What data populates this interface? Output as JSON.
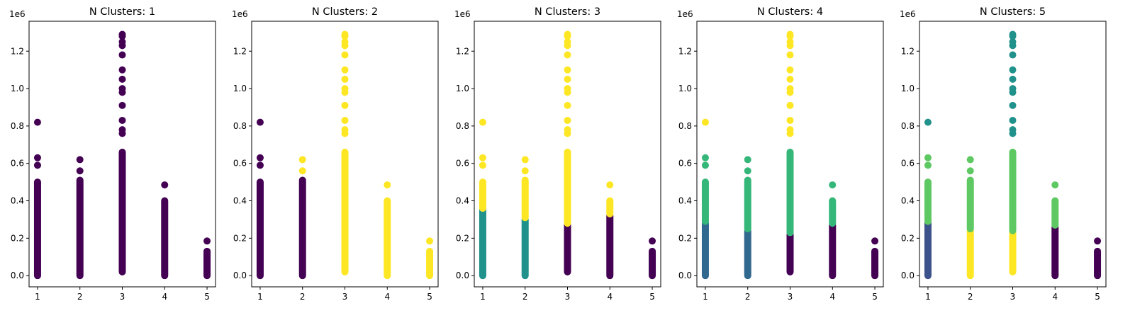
{
  "figure": {
    "title_prefix": "N Clusters: ",
    "offset_label": "1e6"
  },
  "colors": {
    "viridis_purple": "#440154",
    "viridis_blue": "#3b528b",
    "viridis_darkteal": "#31688e",
    "viridis_teal": "#21918c",
    "viridis_green": "#35b779",
    "viridis_lightgreen": "#5ec962",
    "viridis_yellow": "#fde725"
  },
  "chart_data": [
    {
      "type": "scatter",
      "title": "N Clusters: 1",
      "xlabel": "",
      "ylabel": "",
      "xticks": [
        "1",
        "2",
        "3",
        "4",
        "5"
      ],
      "yticks": [
        "0.0",
        "0.2",
        "0.4",
        "0.6",
        "0.8",
        "1.0",
        "1.2"
      ],
      "y_scale_label": "1e6",
      "xlim": [
        0.8,
        5.2
      ],
      "ylim": [
        -60000,
        1360000
      ],
      "grid": false,
      "columns": [
        {
          "x": 1,
          "segments": [
            {
              "min": 0,
              "max": 500000,
              "color": "#440154"
            }
          ],
          "points": [
            {
              "y": 590000,
              "color": "#440154"
            },
            {
              "y": 630000,
              "color": "#440154"
            },
            {
              "y": 820000,
              "color": "#440154"
            }
          ]
        },
        {
          "x": 2,
          "segments": [
            {
              "min": 0,
              "max": 510000,
              "color": "#440154"
            }
          ],
          "points": [
            {
              "y": 560000,
              "color": "#440154"
            },
            {
              "y": 620000,
              "color": "#440154"
            }
          ]
        },
        {
          "x": 3,
          "segments": [
            {
              "min": 20000,
              "max": 660000,
              "color": "#440154"
            }
          ],
          "points": [
            {
              "y": 760000,
              "color": "#440154"
            },
            {
              "y": 780000,
              "color": "#440154"
            },
            {
              "y": 830000,
              "color": "#440154"
            },
            {
              "y": 910000,
              "color": "#440154"
            },
            {
              "y": 980000,
              "color": "#440154"
            },
            {
              "y": 1000000,
              "color": "#440154"
            },
            {
              "y": 1050000,
              "color": "#440154"
            },
            {
              "y": 1100000,
              "color": "#440154"
            },
            {
              "y": 1180000,
              "color": "#440154"
            },
            {
              "y": 1230000,
              "color": "#440154"
            },
            {
              "y": 1250000,
              "color": "#440154"
            },
            {
              "y": 1280000,
              "color": "#440154"
            },
            {
              "y": 1290000,
              "color": "#440154"
            }
          ]
        },
        {
          "x": 4,
          "segments": [
            {
              "min": 0,
              "max": 400000,
              "color": "#440154"
            }
          ],
          "points": [
            {
              "y": 485000,
              "color": "#440154"
            }
          ]
        },
        {
          "x": 5,
          "segments": [
            {
              "min": 0,
              "max": 130000,
              "color": "#440154"
            }
          ],
          "points": [
            {
              "y": 185000,
              "color": "#440154"
            }
          ]
        }
      ]
    },
    {
      "type": "scatter",
      "title": "N Clusters: 2",
      "xlabel": "",
      "ylabel": "",
      "xticks": [
        "1",
        "2",
        "3",
        "4",
        "5"
      ],
      "yticks": [
        "0.0",
        "0.2",
        "0.4",
        "0.6",
        "0.8",
        "1.0",
        "1.2"
      ],
      "y_scale_label": "1e6",
      "xlim": [
        0.8,
        5.2
      ],
      "ylim": [
        -60000,
        1360000
      ],
      "grid": false,
      "columns": [
        {
          "x": 1,
          "segments": [
            {
              "min": 0,
              "max": 500000,
              "color": "#440154"
            }
          ],
          "points": [
            {
              "y": 590000,
              "color": "#440154"
            },
            {
              "y": 630000,
              "color": "#440154"
            },
            {
              "y": 820000,
              "color": "#440154"
            }
          ]
        },
        {
          "x": 2,
          "segments": [
            {
              "min": 0,
              "max": 510000,
              "color": "#440154"
            }
          ],
          "points": [
            {
              "y": 560000,
              "color": "#fde725"
            },
            {
              "y": 620000,
              "color": "#fde725"
            }
          ]
        },
        {
          "x": 3,
          "segments": [
            {
              "min": 20000,
              "max": 660000,
              "color": "#fde725"
            }
          ],
          "points": [
            {
              "y": 760000,
              "color": "#fde725"
            },
            {
              "y": 780000,
              "color": "#fde725"
            },
            {
              "y": 830000,
              "color": "#fde725"
            },
            {
              "y": 910000,
              "color": "#fde725"
            },
            {
              "y": 980000,
              "color": "#fde725"
            },
            {
              "y": 1000000,
              "color": "#fde725"
            },
            {
              "y": 1050000,
              "color": "#fde725"
            },
            {
              "y": 1100000,
              "color": "#fde725"
            },
            {
              "y": 1180000,
              "color": "#fde725"
            },
            {
              "y": 1230000,
              "color": "#fde725"
            },
            {
              "y": 1250000,
              "color": "#fde725"
            },
            {
              "y": 1280000,
              "color": "#fde725"
            },
            {
              "y": 1290000,
              "color": "#fde725"
            }
          ]
        },
        {
          "x": 4,
          "segments": [
            {
              "min": 0,
              "max": 400000,
              "color": "#fde725"
            }
          ],
          "points": [
            {
              "y": 485000,
              "color": "#fde725"
            }
          ]
        },
        {
          "x": 5,
          "segments": [
            {
              "min": 0,
              "max": 130000,
              "color": "#fde725"
            }
          ],
          "points": [
            {
              "y": 185000,
              "color": "#fde725"
            }
          ]
        }
      ]
    },
    {
      "type": "scatter",
      "title": "N Clusters: 3",
      "xlabel": "",
      "ylabel": "",
      "xticks": [
        "1",
        "2",
        "3",
        "4",
        "5"
      ],
      "yticks": [
        "0.0",
        "0.2",
        "0.4",
        "0.6",
        "0.8",
        "1.0",
        "1.2"
      ],
      "y_scale_label": "1e6",
      "xlim": [
        0.8,
        5.2
      ],
      "ylim": [
        -60000,
        1360000
      ],
      "grid": false,
      "columns": [
        {
          "x": 1,
          "segments": [
            {
              "min": 0,
              "max": 350000,
              "color": "#21918c"
            },
            {
              "min": 360000,
              "max": 500000,
              "color": "#fde725"
            }
          ],
          "points": [
            {
              "y": 590000,
              "color": "#fde725"
            },
            {
              "y": 630000,
              "color": "#fde725"
            },
            {
              "y": 820000,
              "color": "#fde725"
            }
          ]
        },
        {
          "x": 2,
          "segments": [
            {
              "min": 0,
              "max": 300000,
              "color": "#21918c"
            },
            {
              "min": 310000,
              "max": 510000,
              "color": "#fde725"
            }
          ],
          "points": [
            {
              "y": 560000,
              "color": "#fde725"
            },
            {
              "y": 620000,
              "color": "#fde725"
            }
          ]
        },
        {
          "x": 3,
          "segments": [
            {
              "min": 20000,
              "max": 270000,
              "color": "#440154"
            },
            {
              "min": 280000,
              "max": 660000,
              "color": "#fde725"
            }
          ],
          "points": [
            {
              "y": 760000,
              "color": "#fde725"
            },
            {
              "y": 780000,
              "color": "#fde725"
            },
            {
              "y": 830000,
              "color": "#fde725"
            },
            {
              "y": 910000,
              "color": "#fde725"
            },
            {
              "y": 980000,
              "color": "#fde725"
            },
            {
              "y": 1000000,
              "color": "#fde725"
            },
            {
              "y": 1050000,
              "color": "#fde725"
            },
            {
              "y": 1100000,
              "color": "#fde725"
            },
            {
              "y": 1180000,
              "color": "#fde725"
            },
            {
              "y": 1230000,
              "color": "#fde725"
            },
            {
              "y": 1250000,
              "color": "#fde725"
            },
            {
              "y": 1280000,
              "color": "#fde725"
            },
            {
              "y": 1290000,
              "color": "#fde725"
            }
          ]
        },
        {
          "x": 4,
          "segments": [
            {
              "min": 0,
              "max": 320000,
              "color": "#440154"
            },
            {
              "min": 330000,
              "max": 400000,
              "color": "#fde725"
            }
          ],
          "points": [
            {
              "y": 485000,
              "color": "#fde725"
            }
          ]
        },
        {
          "x": 5,
          "segments": [
            {
              "min": 0,
              "max": 130000,
              "color": "#440154"
            }
          ],
          "points": [
            {
              "y": 185000,
              "color": "#440154"
            }
          ]
        }
      ]
    },
    {
      "type": "scatter",
      "title": "N Clusters: 4",
      "xlabel": "",
      "ylabel": "",
      "xticks": [
        "1",
        "2",
        "3",
        "4",
        "5"
      ],
      "yticks": [
        "0.0",
        "0.2",
        "0.4",
        "0.6",
        "0.8",
        "1.0",
        "1.2"
      ],
      "y_scale_label": "1e6",
      "xlim": [
        0.8,
        5.2
      ],
      "ylim": [
        -60000,
        1360000
      ],
      "grid": false,
      "columns": [
        {
          "x": 1,
          "segments": [
            {
              "min": 0,
              "max": 280000,
              "color": "#31688e"
            },
            {
              "min": 290000,
              "max": 500000,
              "color": "#35b779"
            }
          ],
          "points": [
            {
              "y": 590000,
              "color": "#35b779"
            },
            {
              "y": 630000,
              "color": "#35b779"
            },
            {
              "y": 820000,
              "color": "#fde725"
            }
          ]
        },
        {
          "x": 2,
          "segments": [
            {
              "min": 0,
              "max": 240000,
              "color": "#31688e"
            },
            {
              "min": 250000,
              "max": 510000,
              "color": "#35b779"
            }
          ],
          "points": [
            {
              "y": 560000,
              "color": "#35b779"
            },
            {
              "y": 620000,
              "color": "#35b779"
            }
          ]
        },
        {
          "x": 3,
          "segments": [
            {
              "min": 20000,
              "max": 220000,
              "color": "#440154"
            },
            {
              "min": 230000,
              "max": 660000,
              "color": "#35b779"
            }
          ],
          "points": [
            {
              "y": 760000,
              "color": "#fde725"
            },
            {
              "y": 780000,
              "color": "#fde725"
            },
            {
              "y": 830000,
              "color": "#fde725"
            },
            {
              "y": 910000,
              "color": "#fde725"
            },
            {
              "y": 980000,
              "color": "#fde725"
            },
            {
              "y": 1000000,
              "color": "#fde725"
            },
            {
              "y": 1050000,
              "color": "#fde725"
            },
            {
              "y": 1100000,
              "color": "#fde725"
            },
            {
              "y": 1180000,
              "color": "#fde725"
            },
            {
              "y": 1230000,
              "color": "#fde725"
            },
            {
              "y": 1250000,
              "color": "#fde725"
            },
            {
              "y": 1280000,
              "color": "#fde725"
            },
            {
              "y": 1290000,
              "color": "#fde725"
            }
          ]
        },
        {
          "x": 4,
          "segments": [
            {
              "min": 0,
              "max": 270000,
              "color": "#440154"
            },
            {
              "min": 280000,
              "max": 400000,
              "color": "#35b779"
            }
          ],
          "points": [
            {
              "y": 485000,
              "color": "#35b779"
            }
          ]
        },
        {
          "x": 5,
          "segments": [
            {
              "min": 0,
              "max": 130000,
              "color": "#440154"
            }
          ],
          "points": [
            {
              "y": 185000,
              "color": "#440154"
            }
          ]
        }
      ]
    },
    {
      "type": "scatter",
      "title": "N Clusters: 5",
      "xlabel": "",
      "ylabel": "",
      "xticks": [
        "1",
        "2",
        "3",
        "4",
        "5"
      ],
      "yticks": [
        "0.0",
        "0.2",
        "0.4",
        "0.6",
        "0.8",
        "1.0",
        "1.2"
      ],
      "y_scale_label": "1e6",
      "xlim": [
        0.8,
        5.2
      ],
      "ylim": [
        -60000,
        1360000
      ],
      "grid": false,
      "columns": [
        {
          "x": 1,
          "segments": [
            {
              "min": 0,
              "max": 280000,
              "color": "#3b528b"
            },
            {
              "min": 290000,
              "max": 500000,
              "color": "#5ec962"
            }
          ],
          "points": [
            {
              "y": 590000,
              "color": "#5ec962"
            },
            {
              "y": 630000,
              "color": "#5ec962"
            },
            {
              "y": 820000,
              "color": "#21918c"
            }
          ]
        },
        {
          "x": 2,
          "segments": [
            {
              "min": 0,
              "max": 240000,
              "color": "#fde725"
            },
            {
              "min": 250000,
              "max": 510000,
              "color": "#5ec962"
            }
          ],
          "points": [
            {
              "y": 560000,
              "color": "#5ec962"
            },
            {
              "y": 620000,
              "color": "#5ec962"
            }
          ]
        },
        {
          "x": 3,
          "segments": [
            {
              "min": 20000,
              "max": 230000,
              "color": "#fde725"
            },
            {
              "min": 240000,
              "max": 660000,
              "color": "#5ec962"
            }
          ],
          "points": [
            {
              "y": 760000,
              "color": "#21918c"
            },
            {
              "y": 780000,
              "color": "#21918c"
            },
            {
              "y": 830000,
              "color": "#21918c"
            },
            {
              "y": 910000,
              "color": "#21918c"
            },
            {
              "y": 980000,
              "color": "#21918c"
            },
            {
              "y": 1000000,
              "color": "#21918c"
            },
            {
              "y": 1050000,
              "color": "#21918c"
            },
            {
              "y": 1100000,
              "color": "#21918c"
            },
            {
              "y": 1180000,
              "color": "#21918c"
            },
            {
              "y": 1230000,
              "color": "#21918c"
            },
            {
              "y": 1250000,
              "color": "#21918c"
            },
            {
              "y": 1280000,
              "color": "#21918c"
            },
            {
              "y": 1290000,
              "color": "#21918c"
            }
          ]
        },
        {
          "x": 4,
          "segments": [
            {
              "min": 0,
              "max": 260000,
              "color": "#440154"
            },
            {
              "min": 270000,
              "max": 400000,
              "color": "#5ec962"
            }
          ],
          "points": [
            {
              "y": 485000,
              "color": "#5ec962"
            }
          ]
        },
        {
          "x": 5,
          "segments": [
            {
              "min": 0,
              "max": 130000,
              "color": "#440154"
            }
          ],
          "points": [
            {
              "y": 185000,
              "color": "#440154"
            }
          ]
        }
      ]
    }
  ]
}
